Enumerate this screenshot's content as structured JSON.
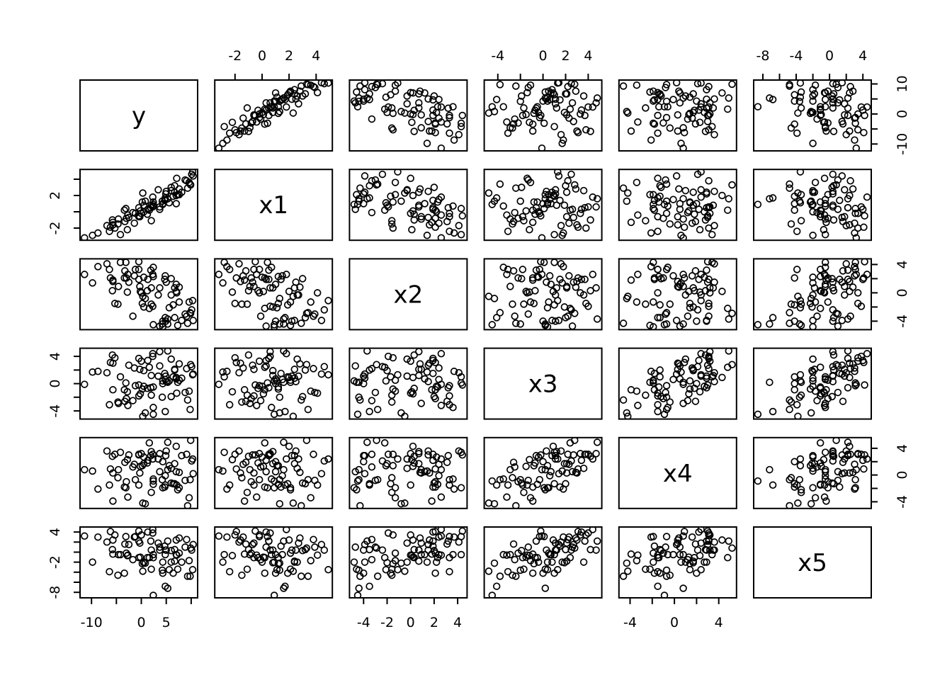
{
  "figure": {
    "background": "#ffffff",
    "foreground": "#000000"
  },
  "chart_data": {
    "type": "scatter",
    "subtype": "scatterplot-matrix",
    "title": "",
    "variables": [
      "y",
      "x1",
      "x2",
      "x3",
      "x4",
      "x5"
    ],
    "n_points": 80,
    "grid": false,
    "legend": null,
    "point_style": {
      "marker": "open-circle",
      "color": "#000000"
    },
    "diagonal_labels": [
      "y",
      "x1",
      "x2",
      "x3",
      "x4",
      "x5"
    ],
    "limits": {
      "y": [
        -12.3,
        11.3
      ],
      "x1": [
        -3.5,
        5.2
      ],
      "x2": [
        -5.2,
        4.8
      ],
      "x3": [
        -5.2,
        5.2
      ],
      "x4": [
        -5.0,
        5.6
      ],
      "x5": [
        -9.1,
        5.0
      ]
    },
    "ticks": {
      "y": [
        -10,
        -5,
        0,
        5,
        10
      ],
      "x1": [
        -2,
        0,
        2,
        4
      ],
      "x2": [
        -4,
        -2,
        0,
        2,
        4
      ],
      "x3": [
        -4,
        -2,
        0,
        2,
        4
      ],
      "x4": [
        -4,
        -2,
        0,
        2,
        4
      ],
      "x5": [
        -8,
        -6,
        -4,
        -2,
        0,
        2,
        4
      ]
    },
    "axes": [
      {
        "side": "top",
        "col": 1,
        "var": "x1",
        "labels": [
          -2,
          0,
          2,
          4
        ]
      },
      {
        "side": "top",
        "col": 3,
        "var": "x3",
        "labels": [
          -4,
          0,
          2,
          4
        ]
      },
      {
        "side": "top",
        "col": 5,
        "var": "x5",
        "labels": [
          -8,
          -4,
          0,
          4
        ]
      },
      {
        "side": "bottom",
        "col": 0,
        "var": "y",
        "labels": [
          -10,
          0,
          5
        ]
      },
      {
        "side": "bottom",
        "col": 2,
        "var": "x2",
        "labels": [
          -4,
          -2,
          0,
          2,
          4
        ]
      },
      {
        "side": "bottom",
        "col": 4,
        "var": "x4",
        "labels": [
          -4,
          0,
          4
        ]
      },
      {
        "side": "left",
        "row": 1,
        "var": "x1",
        "labels": [
          2,
          -2
        ]
      },
      {
        "side": "left",
        "row": 3,
        "var": "x3",
        "labels": [
          4,
          0,
          -4
        ]
      },
      {
        "side": "left",
        "row": 5,
        "var": "x5",
        "labels": [
          4,
          -2,
          -8
        ]
      },
      {
        "side": "right",
        "row": 0,
        "var": "y",
        "labels": [
          10,
          0,
          -10
        ]
      },
      {
        "side": "right",
        "row": 2,
        "var": "x2",
        "labels": [
          4,
          0,
          -4
        ]
      },
      {
        "side": "right",
        "row": 4,
        "var": "x4",
        "labels": [
          4,
          0,
          -4
        ]
      }
    ],
    "observations": {
      "y": [
        -0.3,
        0.2,
        1.3,
        7.6,
        -4.7,
        2.0,
        -1.2,
        9.8,
        -8.7,
        5.3,
        -0.2,
        7.6,
        -5.8,
        1.9,
        6.4,
        -3.0,
        8.1,
        -6.2,
        2.4,
        4.7,
        -11.4,
        1.6,
        6.0,
        5.6,
        -2.7,
        4.9,
        3.7,
        -5.7,
        9.1,
        7.0,
        -1.7,
        6.0,
        -2.8,
        -3.1,
        4.8,
        -2.5,
        10.4,
        0.5,
        -5.7,
        4.2,
        7.0,
        -9.8,
        2.4,
        6.7,
        1.2,
        2.3,
        2.0,
        5.0,
        3.7,
        10.3,
        -4.6,
        4.8,
        -5.3,
        9.6,
        0.5,
        -0.5,
        0.3,
        -1.4,
        4.3,
        7.1,
        0.0,
        9.3,
        -6.9,
        2.3,
        2.4,
        9.9,
        -6.4,
        4.3,
        3.4,
        -0.5,
        5.3,
        -3.4,
        10.1,
        -3.3,
        7.3,
        -0.5,
        8.8,
        -4.2,
        0.8,
        6.7
      ],
      "x1": [
        -0.6,
        1.2,
        0.3,
        2.1,
        -1.5,
        0.8,
        -0.2,
        3.4,
        -2.6,
        1.6,
        0.1,
        2.8,
        -1.0,
        0.5,
        1.9,
        -0.8,
        2.4,
        -1.9,
        0.9,
        1.4,
        -3.2,
        0.2,
        3.0,
        1.1,
        -0.4,
        2.2,
        0.6,
        -1.3,
        3.8,
        1.0,
        -0.1,
        2.6,
        -2.2,
        0.4,
        1.7,
        -0.7,
        4.4,
        0.0,
        -1.6,
        1.3,
        2.0,
        -2.9,
        0.7,
        3.2,
        -0.3,
        1.8,
        -1.1,
        2.5,
        0.3,
        4.9,
        -0.9,
        1.5,
        -2.0,
        3.6,
        0.8,
        -0.5,
        2.3,
        -1.4,
        1.0,
        4.1,
        -0.2,
        2.9,
        -1.7,
        0.6,
        1.2,
        3.3,
        -2.4,
        0.9,
        2.7,
        -0.6,
        1.6,
        0.2,
        4.6,
        -1.2,
        2.1,
        0.5,
        3.9,
        -2.8,
        1.3,
        2.4
      ],
      "x2": [
        0.9,
        -1.5,
        1.9,
        -1.3,
        -1.6,
        0.7,
        3.3,
        -2.8,
        3.7,
        -4.4,
        0.2,
        0.8,
        0.3,
        3.2,
        -1.7,
        2.1,
        -3.9,
        2.1,
        -4.5,
        1.9,
        2.6,
        -2.2,
        2.0,
        -2.1,
        2.6,
        -4.0,
        0.7,
        1.8,
        -3.3,
        1.2,
        -3.3,
        -0.3,
        0.1,
        4.3,
        -3.5,
        1.5,
        -3.9,
        2.2,
        1.6,
        -4.4,
        0.2,
        1.4,
        3.6,
        -3.5,
        0.3,
        2.6,
        -1.6,
        1.5,
        -4.7,
        -1.1,
        0.9,
        2.4,
        -1.5,
        -1.3,
        -2.0,
        4.4,
        -0.5,
        2.4,
        -4.0,
        0.0,
        0.0,
        -4.3,
        4.1,
        -1.9,
        2.3,
        -2.9,
        3.3,
        -4.8,
        -0.3,
        3.3,
        -3.7,
        2.1,
        -2.4,
        3.1,
        -4.6,
        1.9,
        -3.0,
        4.3,
        -0.8,
        0.7
      ],
      "x3": [
        2.1,
        -0.8,
        3.4,
        0.5,
        -2.7,
        1.2,
        -0.3,
        -3.8,
        1.8,
        0.2,
        -1.5,
        2.9,
        4.2,
        -0.6,
        1.0,
        -2.2,
        0.8,
        3.1,
        -4.5,
        1.5,
        -0.1,
        2.4,
        -1.9,
        0.4,
        -3.2,
        1.1,
        4.7,
        -0.9,
        2.2,
        0.7,
        -2.5,
        3.6,
        -1.2,
        0.1,
        -4.1,
        2.7,
        1.4,
        -0.4,
        3.0,
        -2.0,
        0.9,
        1.7,
        -3.5,
        2.0,
        -0.7,
        4.4,
        -1.7,
        0.3,
        2.6,
        1.3,
        -2.9,
        0.6,
        3.8,
        -1.1,
        1.9,
        -0.2,
        -4.8,
        2.3,
        0.0,
        -1.4,
        3.3,
        -2.4,
        1.6,
        4.0,
        -0.5,
        2.8,
        -3.1,
        0.4,
        1.1,
        -1.8,
        4.8,
        -0.9,
        2.5,
        -2.6,
        0.2,
        3.7,
        -1.3,
        1.0,
        -4.3,
        2.1
      ],
      "x4": [
        0.3,
        1.4,
        2.2,
        -1.9,
        -0.4,
        3.5,
        -0.7,
        -0.7,
        -2.1,
        0.8,
        1.3,
        0.4,
        2.8,
        2.9,
        -1.3,
        -1.0,
        2.9,
        0.9,
        -0.9,
        -1.8,
        0.8,
        4.8,
        -1.2,
        1.4,
        -3.3,
        2.9,
        3.2,
        -3.9,
        3.1,
        0.5,
        1.2,
        1.0,
        2.3,
        -1.9,
        -1.5,
        3.0,
        0.2,
        2.7,
        0.3,
        -0.7,
        4.3,
        0.6,
        -0.6,
        -1.3,
        1.8,
        2.4,
        -2.6,
        3.6,
        0.5,
        2.4,
        0.8,
        -0.1,
        3.1,
        -3.4,
        1.7,
        3.0,
        -4.2,
        1.6,
        2.0,
        -1.5,
        3.2,
        -4.6,
        3.6,
        3.1,
        -1.4,
        5.2,
        -1.5,
        -1.9,
        2.4,
        -1.5,
        4.9,
        -1.8,
        2.1,
        1.9,
        -2.2,
        3.1,
        -0.8,
        3.4,
        -4.3,
        1.7
      ],
      "x5": [
        1.8,
        -2.3,
        4.0,
        -0.2,
        -4.6,
        0.4,
        3.1,
        -4.8,
        3.0,
        -7.2,
        -1.0,
        2.8,
        0.5,
        2.2,
        -4.2,
        -0.2,
        -2.0,
        4.1,
        -8.6,
        1.2,
        3.2,
        -1.1,
        0.3,
        -3.5,
        -0.6,
        0.4,
        0.4,
        -0.4,
        2.5,
        -0.5,
        -1.5,
        -2.0,
        -0.7,
        3.1,
        -6.8,
        1.5,
        1.5,
        -2.0,
        2.4,
        -3.6,
        2.4,
        -2.0,
        -0.5,
        0.5,
        -1.1,
        4.5,
        -3.4,
        0.4,
        1.0,
        -3.5,
        -0.5,
        -0.5,
        3.4,
        -1.7,
        -2.1,
        4.2,
        -3.8,
        3.0,
        -4.2,
        -0.6,
        3.4,
        -4.8,
        2.0,
        3.8,
        -1.1,
        0.8,
        -3.9,
        -2.0,
        1.8,
        -1.1,
        2.2,
        -4.2,
        0.4,
        1.6,
        -3.4,
        2.2,
        1.0,
        -0.5,
        -2.2,
        -1.8
      ]
    }
  }
}
